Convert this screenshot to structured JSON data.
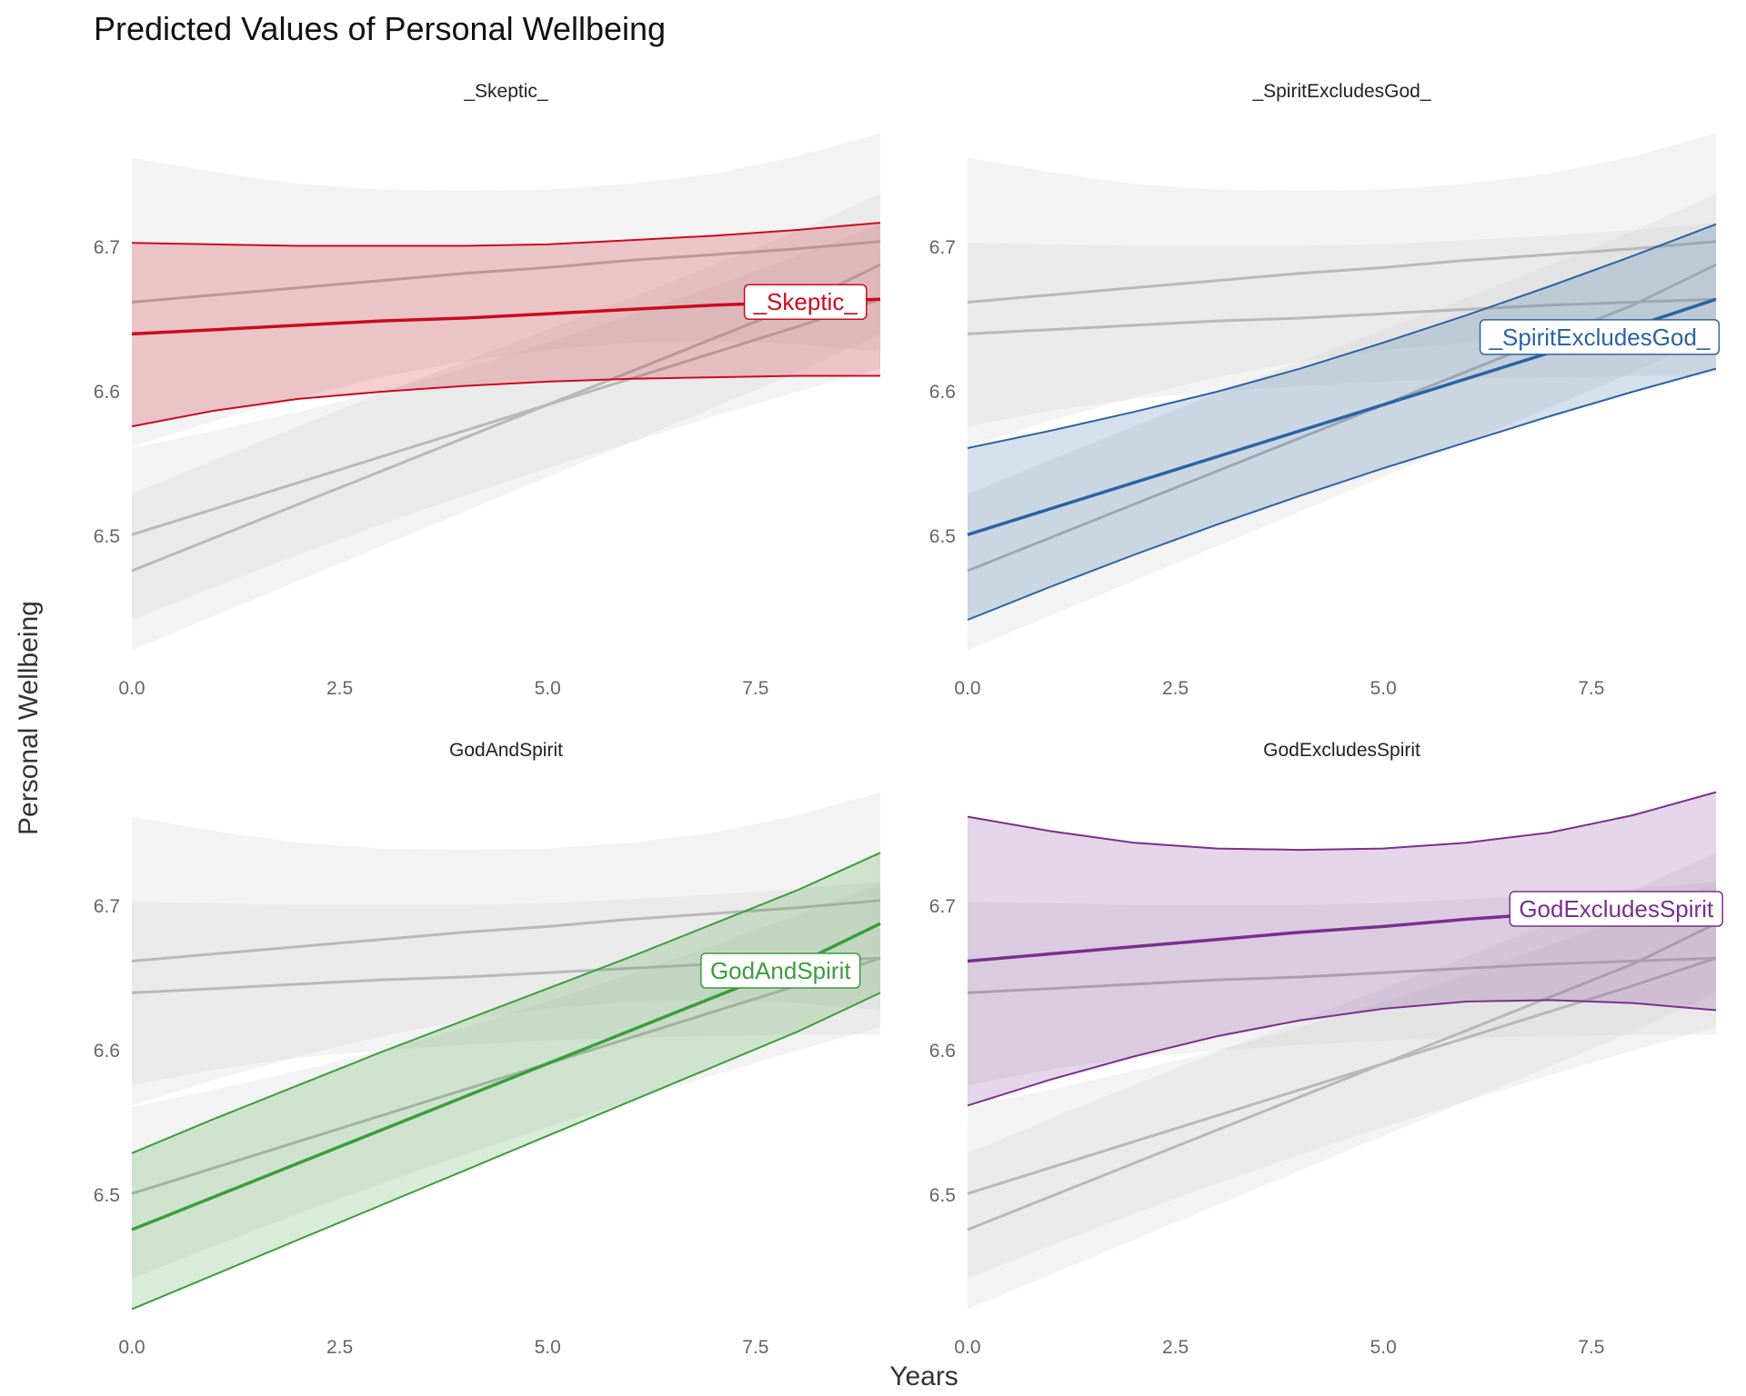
{
  "chart_data": {
    "type": "line",
    "title": "Predicted Values of Personal Wellbeing",
    "xlabel": "Years",
    "ylabel": "Personal Wellbeing",
    "xlim": [
      0,
      9
    ],
    "ylim": [
      6.42,
      6.78
    ],
    "x_ticks": [
      "0.0",
      "2.5",
      "5.0",
      "7.5"
    ],
    "y_ticks": [
      "6.5",
      "6.6",
      "6.7"
    ],
    "grid": false,
    "legend": "direct labels at line ends",
    "panels": [
      {
        "name": "_Skeptic_",
        "highlight": "_Skeptic_",
        "color": "#CC0A1E",
        "label_x": 8.1
      },
      {
        "name": "_SpiritExcludesGod_",
        "highlight": "_SpiritExcludesGod_",
        "color": "#2B63A3",
        "label_x": 7.6
      },
      {
        "name": "GodAndSpirit",
        "highlight": "GodAndSpirit",
        "color": "#3A9E3A",
        "label_x": 7.8
      },
      {
        "name": "GodExcludesSpirit",
        "highlight": "GodExcludesSpirit",
        "color": "#7B2E8F",
        "label_x": 7.8
      }
    ],
    "series": [
      {
        "name": "_Skeptic_",
        "x": [
          0,
          1,
          2,
          3,
          4,
          5,
          6,
          7,
          8,
          9
        ],
        "y": [
          6.64,
          6.643,
          6.646,
          6.649,
          6.651,
          6.654,
          6.657,
          6.66,
          6.662,
          6.664
        ],
        "lower": [
          6.576,
          6.587,
          6.595,
          6.6,
          6.604,
          6.607,
          6.609,
          6.61,
          6.611,
          6.611
        ],
        "upper": [
          6.703,
          6.702,
          6.701,
          6.701,
          6.701,
          6.702,
          6.705,
          6.708,
          6.712,
          6.717
        ]
      },
      {
        "name": "_SpiritExcludesGod_",
        "x": [
          0,
          1,
          2,
          3,
          4,
          5,
          6,
          7,
          8,
          9
        ],
        "y": [
          6.501,
          6.519,
          6.537,
          6.555,
          6.573,
          6.591,
          6.609,
          6.627,
          6.645,
          6.664
        ],
        "lower": [
          6.442,
          6.465,
          6.487,
          6.508,
          6.528,
          6.547,
          6.565,
          6.583,
          6.6,
          6.616
        ],
        "upper": [
          6.561,
          6.573,
          6.586,
          6.6,
          6.616,
          6.634,
          6.653,
          6.673,
          6.694,
          6.716
        ]
      },
      {
        "name": "GodAndSpirit",
        "x": [
          0,
          1,
          2,
          3,
          4,
          5,
          6,
          7,
          8,
          9
        ],
        "y": [
          6.476,
          6.499,
          6.522,
          6.545,
          6.568,
          6.591,
          6.614,
          6.637,
          6.66,
          6.688
        ],
        "lower": [
          6.421,
          6.445,
          6.469,
          6.493,
          6.517,
          6.541,
          6.565,
          6.589,
          6.613,
          6.64
        ],
        "upper": [
          6.529,
          6.553,
          6.576,
          6.599,
          6.621,
          6.643,
          6.665,
          6.688,
          6.711,
          6.737
        ]
      },
      {
        "name": "GodExcludesSpirit",
        "x": [
          0,
          1,
          2,
          3,
          4,
          5,
          6,
          7,
          8,
          9
        ],
        "y": [
          6.662,
          6.667,
          6.672,
          6.677,
          6.682,
          6.686,
          6.691,
          6.695,
          6.699,
          6.704
        ],
        "lower": [
          6.562,
          6.58,
          6.596,
          6.61,
          6.621,
          6.629,
          6.634,
          6.635,
          6.633,
          6.628
        ],
        "upper": [
          6.762,
          6.752,
          6.744,
          6.74,
          6.739,
          6.74,
          6.744,
          6.751,
          6.763,
          6.779
        ]
      }
    ]
  }
}
